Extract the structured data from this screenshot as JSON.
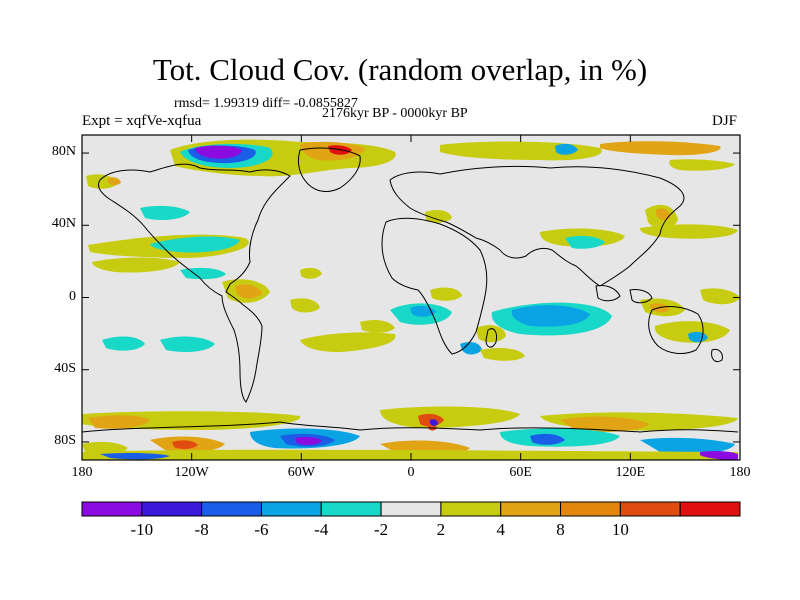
{
  "title": "Tot. Cloud Cov. (random overlap, in %)",
  "stats": "rmsd= 1.99319 diff= -0.0855827",
  "period": "2176kyr BP - 0000kyr BP",
  "experiment": "Expt = xqfVe-xqfua",
  "season": "DJF",
  "map": {
    "projection": "cylindrical-equidistant",
    "lon_range": [
      -180,
      180
    ],
    "lat_range": [
      -90,
      90
    ],
    "lat_ticks": [
      {
        "value": 80,
        "label": "80N"
      },
      {
        "value": 40,
        "label": "40N"
      },
      {
        "value": 0,
        "label": "0"
      },
      {
        "value": -40,
        "label": "40S"
      },
      {
        "value": -80,
        "label": "80S"
      }
    ],
    "lon_ticks": [
      {
        "value": -180,
        "label": "180"
      },
      {
        "value": -120,
        "label": "120W"
      },
      {
        "value": -60,
        "label": "60W"
      },
      {
        "value": 0,
        "label": "0"
      },
      {
        "value": 60,
        "label": "60E"
      },
      {
        "value": 120,
        "label": "120E"
      },
      {
        "value": 180,
        "label": "180"
      }
    ],
    "background_color": "#e6e6e6"
  },
  "colorbar": {
    "colors": [
      "#8a0ce0",
      "#3a1ad8",
      "#1a5ee8",
      "#0aa4e4",
      "#18d8c8",
      "#e6e6e6",
      "#c8cc10",
      "#e0a414",
      "#e2860c",
      "#e04c10",
      "#e01010"
    ],
    "labels": [
      "-10",
      "-8",
      "-6",
      "-4",
      "-2",
      "2",
      "4",
      "8",
      "10"
    ]
  }
}
